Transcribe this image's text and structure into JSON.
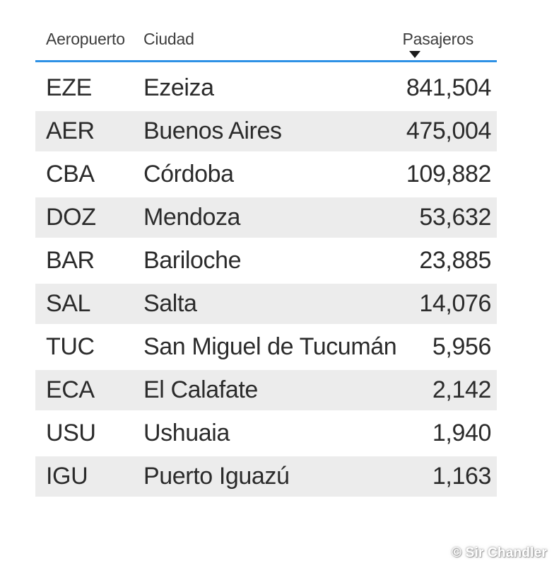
{
  "table": {
    "columns": [
      {
        "label": "Aeropuerto",
        "align": "left"
      },
      {
        "label": "Ciudad",
        "align": "left"
      },
      {
        "label": "Pasajeros",
        "align": "right",
        "sorted": "descending"
      }
    ],
    "rows": [
      [
        "EZE",
        "Ezeiza",
        "841,504"
      ],
      [
        "AER",
        "Buenos Aires",
        "475,004"
      ],
      [
        "CBA",
        "Córdoba",
        "109,882"
      ],
      [
        "DOZ",
        "Mendoza",
        "53,632"
      ],
      [
        "BAR",
        "Bariloche",
        "23,885"
      ],
      [
        "SAL",
        "Salta",
        "14,076"
      ],
      [
        "TUC",
        "San Miguel de Tucumán",
        "5,956"
      ],
      [
        "ECA",
        "El Calafate",
        "2,142"
      ],
      [
        "USU",
        "Ushuaia",
        "1,940"
      ],
      [
        "IGU",
        "Puerto Iguazú",
        "1,163"
      ]
    ]
  },
  "chart_data": {
    "type": "table",
    "title": "",
    "columns": [
      "Aeropuerto",
      "Ciudad",
      "Pasajeros"
    ],
    "rows": [
      {
        "aeropuerto": "EZE",
        "ciudad": "Ezeiza",
        "pasajeros": 841504
      },
      {
        "aeropuerto": "AER",
        "ciudad": "Buenos Aires",
        "pasajeros": 475004
      },
      {
        "aeropuerto": "CBA",
        "ciudad": "Córdoba",
        "pasajeros": 109882
      },
      {
        "aeropuerto": "DOZ",
        "ciudad": "Mendoza",
        "pasajeros": 53632
      },
      {
        "aeropuerto": "BAR",
        "ciudad": "Bariloche",
        "pasajeros": 23885
      },
      {
        "aeropuerto": "SAL",
        "ciudad": "Salta",
        "pasajeros": 14076
      },
      {
        "aeropuerto": "TUC",
        "ciudad": "San Miguel de Tucumán",
        "pasajeros": 5956
      },
      {
        "aeropuerto": "ECA",
        "ciudad": "El Calafate",
        "pasajeros": 2142
      },
      {
        "aeropuerto": "USU",
        "ciudad": "Ushuaia",
        "pasajeros": 1940
      },
      {
        "aeropuerto": "IGU",
        "ciudad": "Puerto Iguazú",
        "pasajeros": 1163
      }
    ],
    "sort": {
      "column": "Pasajeros",
      "direction": "desc"
    },
    "layout": {
      "banded_rows": true,
      "band_color": "#ececec",
      "header_underline_color": "#2e91e5"
    }
  },
  "watermark": {
    "text": "© Sir Chandler"
  },
  "colors": {
    "accent_blue": "#2e91e5",
    "band_gray": "#ececec",
    "row_text": "#2b2b2b",
    "header_text": "#3d3d3d",
    "sort_icon": "#1b1b1b",
    "watermark_text": "#ffffff",
    "background": "#ffffff"
  }
}
